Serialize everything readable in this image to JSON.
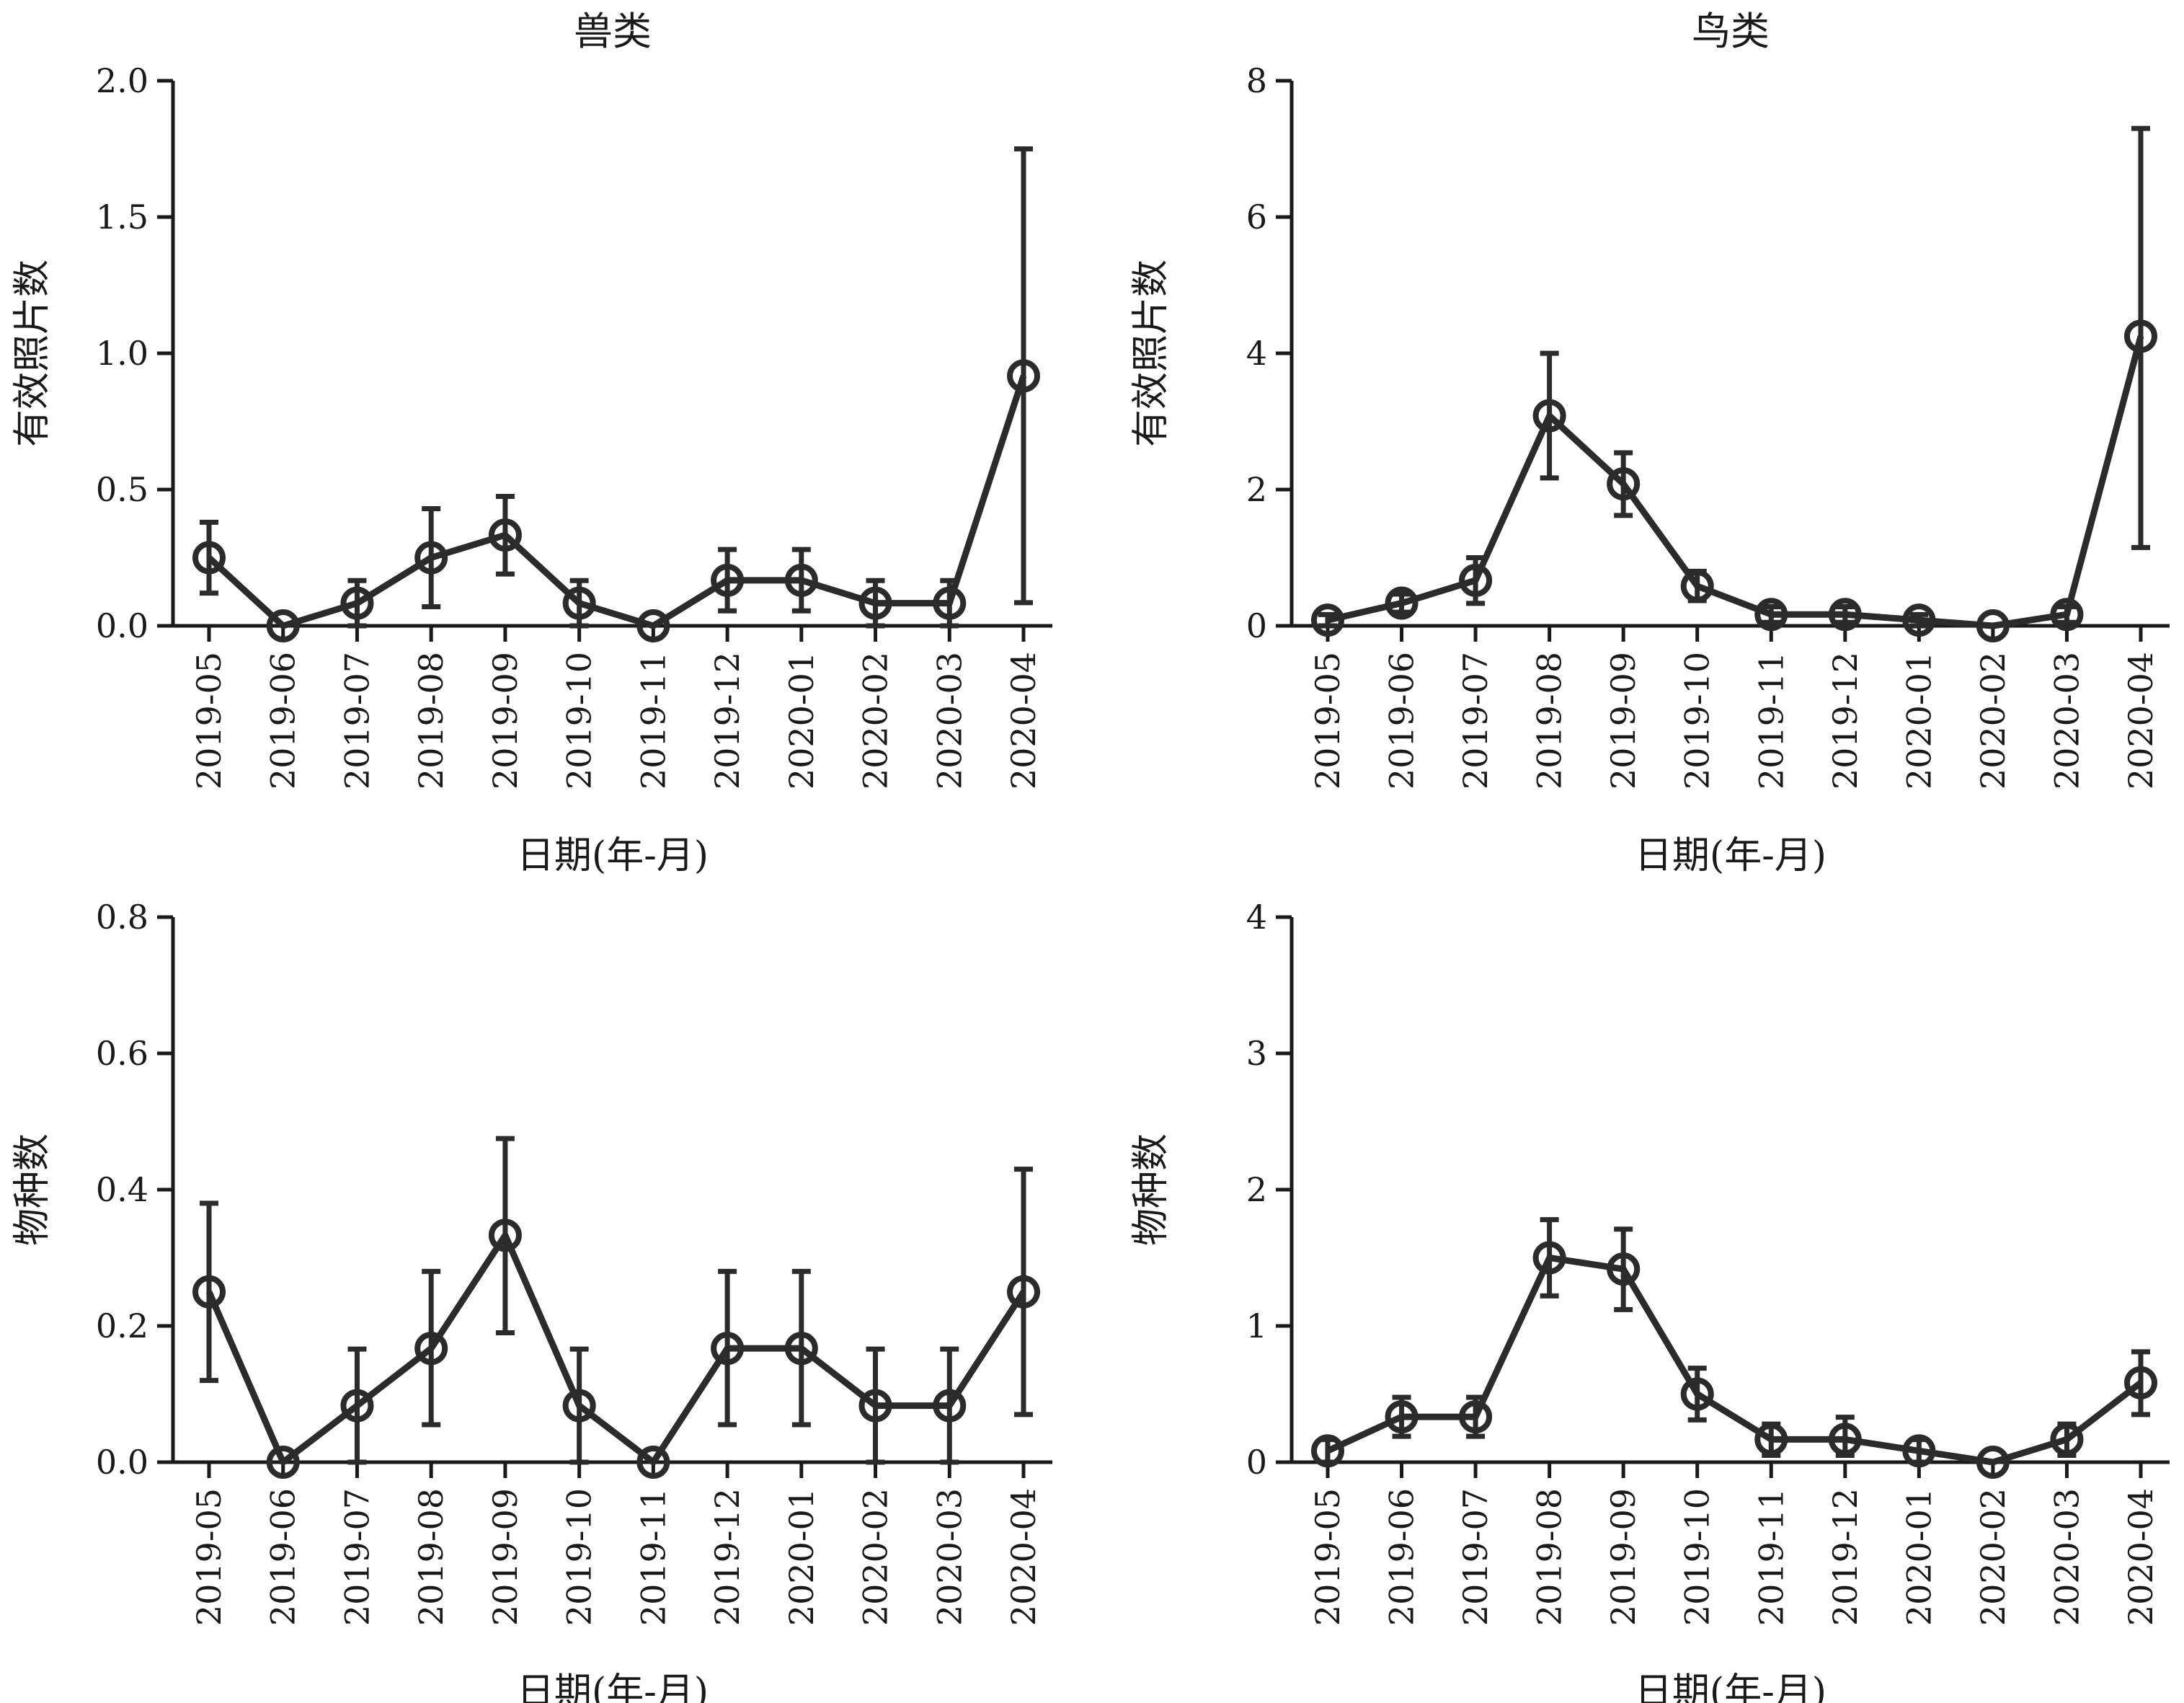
{
  "figure": {
    "colors": {
      "series": "#2b2b2b",
      "axis": "#1a1a1a",
      "background": "#ffffff"
    }
  },
  "chart_data": [
    {
      "type": "line",
      "title": "兽类",
      "xlabel": "日期(年-月)",
      "ylabel": "有效照片数",
      "categories": [
        "2019-05",
        "2019-06",
        "2019-07",
        "2019-08",
        "2019-09",
        "2019-10",
        "2019-11",
        "2019-12",
        "2020-01",
        "2020-02",
        "2020-03",
        "2020-04"
      ],
      "ylim": [
        0,
        2.0
      ],
      "yticks": [
        "0.0",
        "0.5",
        "1.0",
        "1.5",
        "2.0"
      ],
      "values": [
        0.25,
        0.0,
        0.083,
        0.25,
        0.333,
        0.083,
        0.0,
        0.167,
        0.167,
        0.083,
        0.083,
        0.917
      ],
      "err_low": [
        0.12,
        0.0,
        0.0,
        0.07,
        0.19,
        0.0,
        0.0,
        0.055,
        0.055,
        0.0,
        0.0,
        0.085
      ],
      "err_high": [
        0.38,
        0.0,
        0.166,
        0.43,
        0.475,
        0.166,
        0.0,
        0.28,
        0.28,
        0.166,
        0.166,
        1.75
      ],
      "grid": false,
      "legend": "none"
    },
    {
      "type": "line",
      "title": "鸟类",
      "xlabel": "日期(年-月)",
      "ylabel": "有效照片数",
      "categories": [
        "2019-05",
        "2019-06",
        "2019-07",
        "2019-08",
        "2019-09",
        "2019-10",
        "2019-11",
        "2019-12",
        "2020-01",
        "2020-02",
        "2020-03",
        "2020-04"
      ],
      "ylim": [
        0,
        8
      ],
      "yticks": [
        "0",
        "2",
        "4",
        "6",
        "8"
      ],
      "values": [
        0.083,
        0.333,
        0.667,
        3.083,
        2.083,
        0.583,
        0.167,
        0.167,
        0.083,
        0.0,
        0.167,
        4.25
      ],
      "err_low": [
        0.0,
        0.2,
        0.33,
        2.17,
        1.62,
        0.37,
        0.05,
        0.05,
        0.0,
        0.0,
        0.05,
        1.15
      ],
      "err_high": [
        0.166,
        0.466,
        1.0,
        4.0,
        2.54,
        0.8,
        0.28,
        0.28,
        0.166,
        0.0,
        0.28,
        7.3
      ],
      "grid": false,
      "legend": "none"
    },
    {
      "type": "line",
      "title": "",
      "xlabel": "日期(年-月)",
      "ylabel": "物种数",
      "categories": [
        "2019-05",
        "2019-06",
        "2019-07",
        "2019-08",
        "2019-09",
        "2019-10",
        "2019-11",
        "2019-12",
        "2020-01",
        "2020-02",
        "2020-03",
        "2020-04"
      ],
      "ylim": [
        0,
        0.8
      ],
      "yticks": [
        "0.0",
        "0.2",
        "0.4",
        "0.6",
        "0.8"
      ],
      "values": [
        0.25,
        0.0,
        0.083,
        0.167,
        0.333,
        0.083,
        0.0,
        0.167,
        0.167,
        0.083,
        0.083,
        0.25
      ],
      "err_low": [
        0.12,
        0.0,
        0.0,
        0.055,
        0.19,
        0.0,
        0.0,
        0.055,
        0.055,
        0.0,
        0.0,
        0.07
      ],
      "err_high": [
        0.38,
        0.0,
        0.166,
        0.28,
        0.475,
        0.166,
        0.0,
        0.28,
        0.28,
        0.166,
        0.166,
        0.43
      ],
      "grid": false,
      "legend": "none"
    },
    {
      "type": "line",
      "title": "",
      "xlabel": "日期(年-月)",
      "ylabel": "物种数",
      "categories": [
        "2019-05",
        "2019-06",
        "2019-07",
        "2019-08",
        "2019-09",
        "2019-10",
        "2019-11",
        "2019-12",
        "2020-01",
        "2020-02",
        "2020-03",
        "2020-04"
      ],
      "ylim": [
        0,
        4
      ],
      "yticks": [
        "0",
        "1",
        "2",
        "3",
        "4"
      ],
      "values": [
        0.083,
        0.333,
        0.333,
        1.5,
        1.417,
        0.5,
        0.167,
        0.167,
        0.083,
        0.0,
        0.167,
        0.583
      ],
      "err_low": [
        0.0,
        0.19,
        0.19,
        1.22,
        1.12,
        0.31,
        0.05,
        0.05,
        0.0,
        0.0,
        0.05,
        0.35
      ],
      "err_high": [
        0.166,
        0.476,
        0.476,
        1.78,
        1.71,
        0.69,
        0.28,
        0.33,
        0.166,
        0.0,
        0.28,
        0.81
      ],
      "grid": false,
      "legend": "none"
    }
  ]
}
